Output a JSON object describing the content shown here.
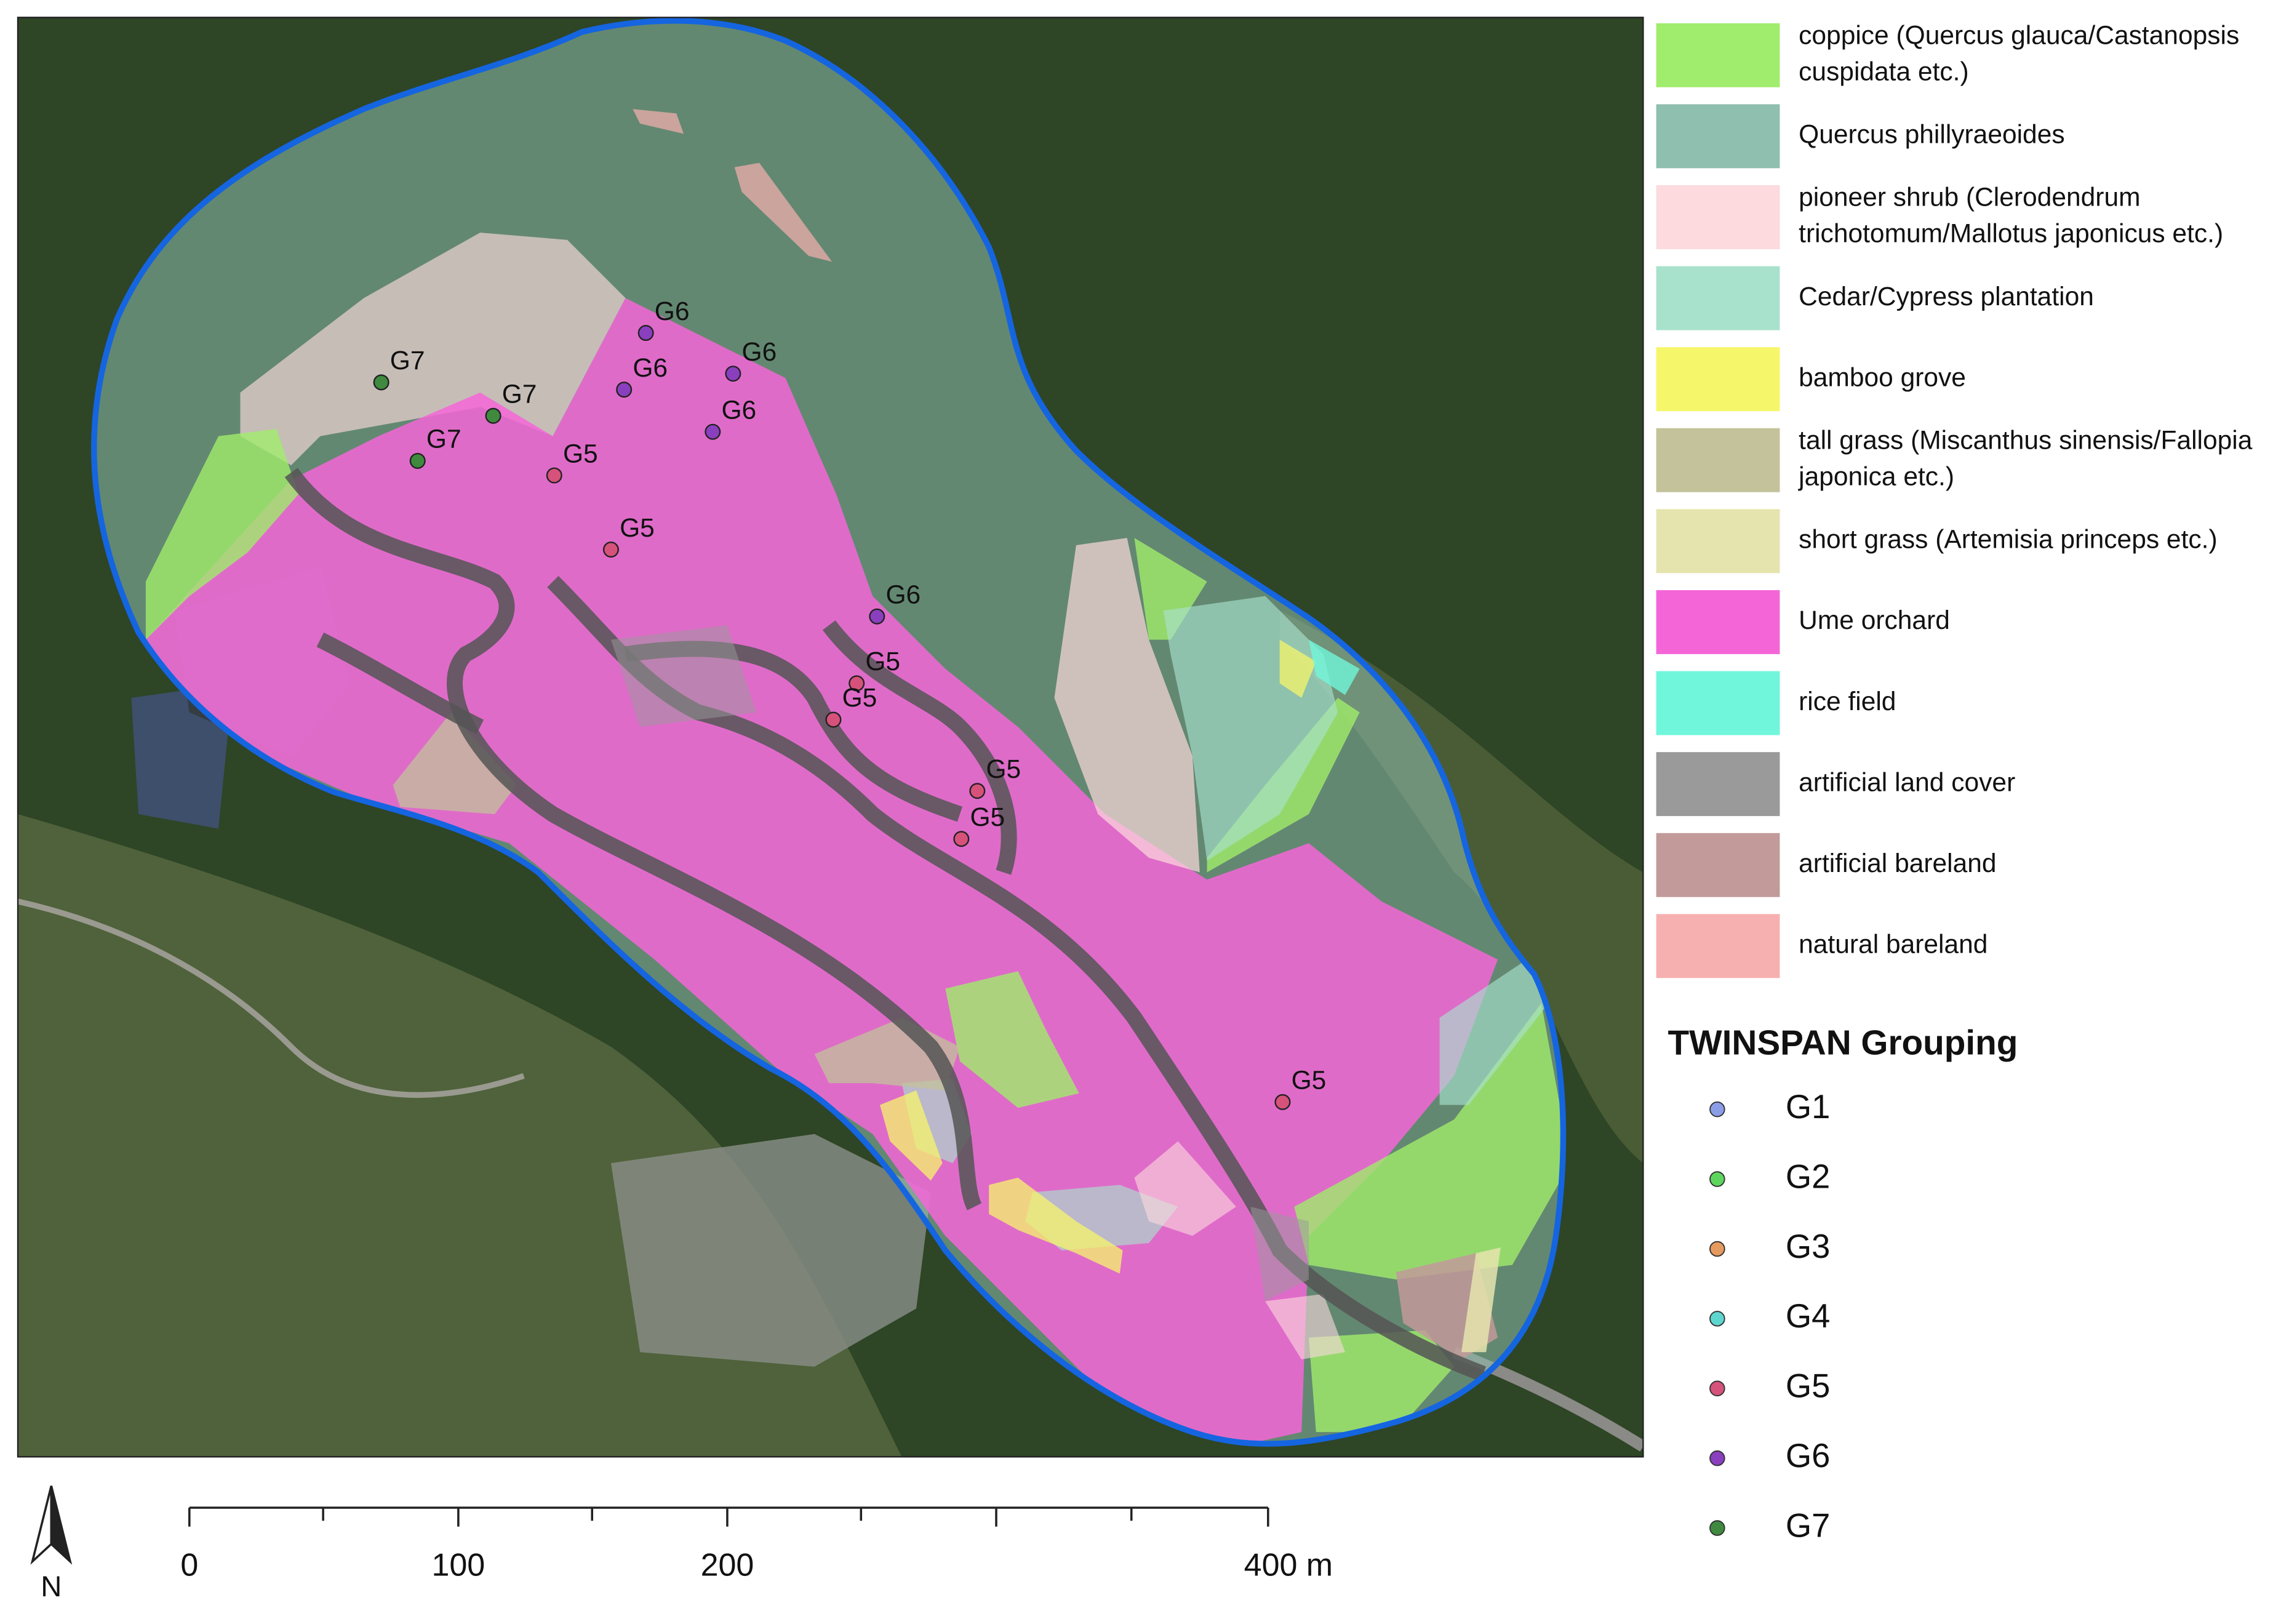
{
  "legend": [
    {
      "label": [
        "coppice (Quercus glauca/Castanopsis",
        "cuspidata etc.)"
      ],
      "color": "#a0ec6c"
    },
    {
      "label": [
        "Quercus phillyraeoides"
      ],
      "color": "#8fbfae"
    },
    {
      "label": [
        "pioneer shrub (Clerodendrum",
        "trichotomum/Mallotus japonicus etc.)"
      ],
      "color": "#fcdadd"
    },
    {
      "label": [
        "Cedar/Cypress plantation"
      ],
      "color": "#a8e2cc"
    },
    {
      "label": [
        "bamboo grove"
      ],
      "color": "#f6f66a"
    },
    {
      "label": [
        "tall grass (Miscanthus sinensis/Fallopia",
        "japonica etc.)"
      ],
      "color": "#c3c29a"
    },
    {
      "label": [
        "short grass (Artemisia princeps etc.)"
      ],
      "color": "#e6e4ae"
    },
    {
      "label": [
        "Ume orchard"
      ],
      "color": "#f466d8"
    },
    {
      "label": [
        "rice field"
      ],
      "color": "#70f6da"
    },
    {
      "label": [
        "artificial land cover"
      ],
      "color": "#9a9a9a"
    },
    {
      "label": [
        "artificial bareland"
      ],
      "color": "#c29a9a"
    },
    {
      "label": [
        "natural bareland"
      ],
      "color": "#f6b0b0"
    }
  ],
  "grouping_title": "TWINSPAN Grouping",
  "groups": [
    {
      "label": "G1",
      "color": "#8a9de6"
    },
    {
      "label": "G2",
      "color": "#5ed65e"
    },
    {
      "label": "G3",
      "color": "#e69a5e"
    },
    {
      "label": "G4",
      "color": "#5ed6d0"
    },
    {
      "label": "G5",
      "color": "#d6527a"
    },
    {
      "label": "G6",
      "color": "#8a3fbf"
    },
    {
      "label": "G7",
      "color": "#3f8a3f"
    }
  ],
  "map_points": [
    "G7",
    "G7",
    "G7",
    "G6",
    "G6",
    "G6",
    "G6",
    "G6",
    "G5",
    "G5",
    "G5",
    "G5",
    "G5",
    "G5",
    "G5"
  ],
  "scale_bar": {
    "labels": [
      "0",
      "100",
      "200",
      "400 m"
    ]
  },
  "north_label": "N"
}
